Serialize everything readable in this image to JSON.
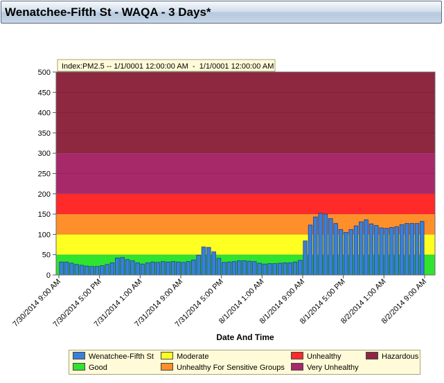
{
  "header": {
    "title": "Wenatchee-Fifth St - WAQA - 3 Days*"
  },
  "chart_data": {
    "type": "bar",
    "annotation": "Index:PM2.5 -- 1/1/0001 12:00:00 AM  -  1/1/0001 12:00:00 AM",
    "xlabel": "Date And Time",
    "ylabel": "",
    "ylim": [
      0,
      500
    ],
    "yticks": [
      0,
      50,
      100,
      150,
      200,
      250,
      300,
      350,
      400,
      450,
      500
    ],
    "x_tick_labels": [
      "7/30/2014 9:00 AM",
      "7/30/2014 5:00 PM",
      "7/31/2014 1:00 AM",
      "7/31/2014 9:00 AM",
      "7/31/2014 5:00 PM",
      "8/1/2014 1:00 AM",
      "8/1/2014 9:00 AM",
      "8/1/2014 5:00 PM",
      "8/2/2014 1:00 AM",
      "8/2/2014 9:00 AM"
    ],
    "x_start": "7/30/2014 9:00 AM",
    "x_end": "8/2/2014 10:00 AM",
    "grid": true,
    "legend_position": "bottom",
    "series": [
      {
        "name": "Wenatchee-Fifth St",
        "color": "#3a7fd8",
        "values": [
          32,
          32,
          29,
          26,
          24,
          22,
          21,
          21,
          23,
          26,
          30,
          42,
          43,
          38,
          35,
          30,
          27,
          30,
          32,
          31,
          33,
          32,
          33,
          32,
          31,
          33,
          37,
          49,
          69,
          68,
          57,
          41,
          31,
          32,
          33,
          35,
          35,
          34,
          33,
          29,
          27,
          28,
          28,
          29,
          30,
          30,
          32,
          36,
          84,
          123,
          143,
          152,
          150,
          139,
          127,
          112,
          105,
          112,
          121,
          131,
          136,
          126,
          122,
          116,
          115,
          117,
          119,
          124,
          127,
          127,
          127,
          132
        ]
      }
    ],
    "bands": [
      {
        "name": "Good",
        "from": 0,
        "to": 50,
        "color": "#2fe32f"
      },
      {
        "name": "Moderate",
        "from": 50,
        "to": 100,
        "color": "#ffff22"
      },
      {
        "name": "Unhealthy For Sensitive Groups",
        "from": 100,
        "to": 150,
        "color": "#ff8f2a"
      },
      {
        "name": "Unhealthy",
        "from": 150,
        "to": 200,
        "color": "#ff2a2a"
      },
      {
        "name": "Very Unhealthy",
        "from": 200,
        "to": 300,
        "color": "#a8296a"
      },
      {
        "name": "Hazardous",
        "from": 300,
        "to": 500,
        "color": "#8e2841"
      }
    ]
  },
  "legend": {
    "items": [
      {
        "label": "Wenatchee-Fifth St",
        "color": "#3a7fd8"
      },
      {
        "label": "Moderate",
        "color": "#ffff22"
      },
      {
        "label": "Unhealthy",
        "color": "#ff2a2a"
      },
      {
        "label": "Hazardous",
        "color": "#8e2841"
      },
      {
        "label": "Good",
        "color": "#2fe32f"
      },
      {
        "label": "Unhealthy For Sensitive Groups",
        "color": "#ff8f2a"
      },
      {
        "label": "Very Unhealthy",
        "color": "#a8296a"
      }
    ]
  }
}
